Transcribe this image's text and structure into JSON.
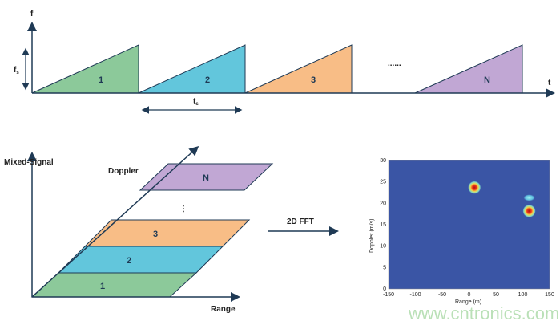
{
  "chirp": {
    "y_label": "f",
    "x_label": "t",
    "bandwidth_label": "f",
    "bandwidth_sub": "s",
    "period_label": "t",
    "period_sub": "s",
    "chirps": [
      "1",
      "2",
      "3",
      "N"
    ],
    "ellipsis": "......"
  },
  "cube": {
    "y_label": "Mixed-Signal",
    "depth_label": "Doppler",
    "x_label": "Range",
    "frames": [
      "1",
      "2",
      "3",
      "N"
    ],
    "ellipsis": "⋮"
  },
  "fft_label": "2D FFT",
  "colors": {
    "green": "#8cc99a",
    "blue": "#62c6dc",
    "orange": "#f8bd86",
    "purple": "#c1a7d4",
    "axis": "#1f3a55",
    "plot_bg": "#3a55a5"
  },
  "plot": {
    "xlabel": "Range (m)",
    "ylabel": "Doppler (m/s)",
    "xticks": [
      "-150",
      "-100",
      "-50",
      "0",
      "50",
      "100",
      "150"
    ],
    "yticks": [
      "0",
      "5",
      "10",
      "15",
      "20",
      "25",
      "30"
    ],
    "xlim": [
      -150,
      150
    ],
    "ylim": [
      0,
      30
    ],
    "targets": [
      {
        "range": 10,
        "doppler": 23.7
      },
      {
        "range": 112,
        "doppler": 18.2
      },
      {
        "range": 112,
        "doppler": 21.3
      }
    ]
  },
  "watermark": "www.cntronics.com"
}
